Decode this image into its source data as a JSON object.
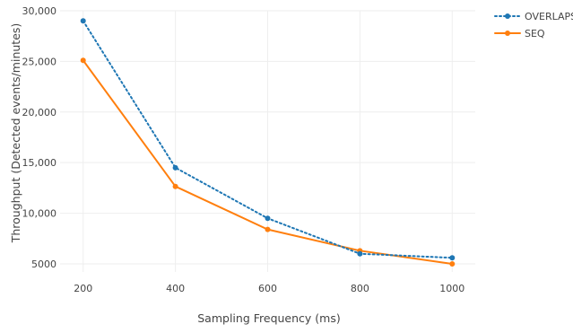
{
  "chart_data": {
    "type": "line",
    "title": "",
    "xlabel": "Sampling Frequency (ms)",
    "ylabel": "Throughput (Detected events/minutes)",
    "x": [
      200,
      400,
      600,
      800,
      1000
    ],
    "xticks": [
      200,
      400,
      600,
      800,
      1000
    ],
    "xtick_labels": [
      "200",
      "400",
      "600",
      "800",
      "1000"
    ],
    "yticks": [
      5000,
      10000,
      15000,
      20000,
      25000,
      30000
    ],
    "ytick_labels": [
      "5000",
      "10,000",
      "15,000",
      "20,000",
      "25,000",
      "30,000"
    ],
    "xlim": [
      150,
      1050
    ],
    "ylim": [
      4200,
      30000
    ],
    "grid": true,
    "legend_position": "top-right",
    "series": [
      {
        "name": "OVERLAPS",
        "values": [
          29000,
          14500,
          9500,
          6000,
          5600
        ],
        "color": "#1f77b4",
        "line_style": "dotted",
        "marker": "circle"
      },
      {
        "name": "SEQ",
        "values": [
          25100,
          12650,
          8400,
          6300,
          5000
        ],
        "color": "#ff7f0e",
        "line_style": "solid",
        "marker": "circle"
      }
    ]
  }
}
